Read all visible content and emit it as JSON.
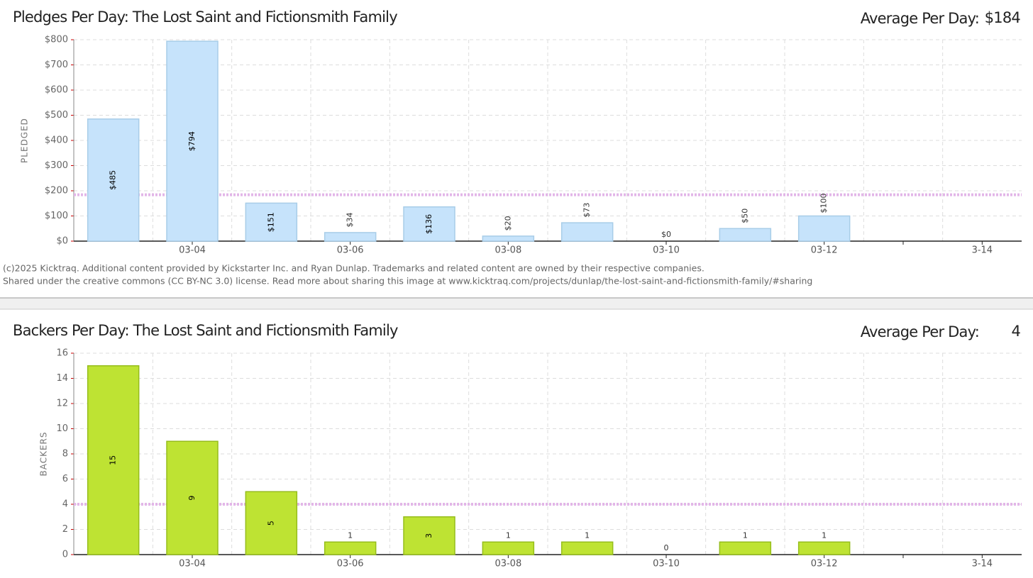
{
  "chart_data": [
    {
      "type": "bar",
      "title": "Pledges Per Day: The Lost Saint and Fictionsmith Family",
      "average_label": "Average Per Day:",
      "average": 184,
      "average_value_label": "$184",
      "ylabel": "PLEDGED",
      "categories": [
        null,
        "03-04",
        null,
        "03-06",
        null,
        "03-08",
        null,
        "03-10",
        null,
        "03-12",
        null,
        "3-14"
      ],
      "values": [
        485,
        794,
        151,
        34,
        136,
        20,
        73,
        0,
        50,
        100,
        null,
        null
      ],
      "value_labels": [
        "$485",
        "$794",
        "$151",
        "$34",
        "$136",
        "$20",
        "$73",
        "$0",
        "$50",
        "$100",
        null,
        null
      ],
      "color": "#c6e3fb",
      "ylim": [
        0,
        800
      ],
      "yticks": [
        {
          "value": 0,
          "label": "$0"
        },
        {
          "value": 100,
          "label": "$100"
        },
        {
          "value": 200,
          "label": "$200"
        },
        {
          "value": 300,
          "label": "$300"
        },
        {
          "value": 400,
          "label": "$400"
        },
        {
          "value": 500,
          "label": "$500"
        },
        {
          "value": 600,
          "label": "$600"
        },
        {
          "value": 700,
          "label": "$700"
        },
        {
          "value": 800,
          "label": "$800"
        }
      ],
      "grid": true,
      "footer": [
        "(c)2025 Kicktraq. Additional content provided by Kickstarter Inc. and Ryan Dunlap. Trademarks and related content are owned by their respective companies.",
        "Shared under the creative commons (CC BY-NC 3.0) license. Read more about sharing this image at www.kicktraq.com/projects/dunlap/the-lost-saint-and-fictionsmith-family/#sharing"
      ]
    },
    {
      "type": "bar",
      "title": "Backers Per Day: The Lost Saint and Fictionsmith Family",
      "average_label": "Average Per Day:",
      "average": 4,
      "ylabel": "BACKERS",
      "categories": [
        null,
        "03-04",
        null,
        "03-06",
        null,
        "03-08",
        null,
        "03-10",
        null,
        "03-12",
        null,
        "3-14"
      ],
      "values": [
        15,
        9,
        5,
        1,
        3,
        1,
        1,
        0,
        1,
        1,
        null,
        null
      ],
      "color": "#bee333",
      "ylim": [
        0,
        16
      ],
      "yticks": [
        0,
        2,
        4,
        6,
        8,
        10,
        12,
        14,
        16
      ],
      "grid": true
    }
  ]
}
